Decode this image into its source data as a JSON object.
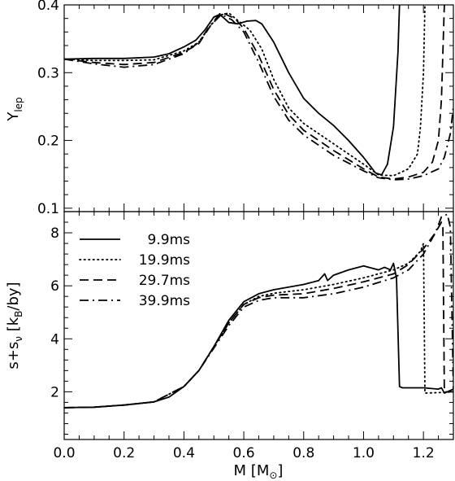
{
  "chart_data": [
    {
      "type": "line",
      "panel": "top",
      "ylabel_main": "Y",
      "ylabel_sub": "lep",
      "xlim": [
        0.0,
        1.3
      ],
      "ylim": [
        0.095,
        0.4
      ],
      "yticks": [
        0.1,
        0.2,
        0.3,
        0.4
      ],
      "ytick_labels": [
        "0.1",
        "0.2",
        "0.3",
        "0.4"
      ],
      "series": [
        {
          "name": "9.9ms",
          "dash": "solid",
          "points": [
            [
              0.0,
              0.32
            ],
            [
              0.1,
              0.321
            ],
            [
              0.2,
              0.321
            ],
            [
              0.3,
              0.323
            ],
            [
              0.35,
              0.328
            ],
            [
              0.4,
              0.338
            ],
            [
              0.44,
              0.348
            ],
            [
              0.47,
              0.363
            ],
            [
              0.5,
              0.382
            ],
            [
              0.52,
              0.386
            ],
            [
              0.55,
              0.374
            ],
            [
              0.58,
              0.372
            ],
            [
              0.61,
              0.376
            ],
            [
              0.64,
              0.377
            ],
            [
              0.66,
              0.372
            ],
            [
              0.7,
              0.345
            ],
            [
              0.75,
              0.3
            ],
            [
              0.8,
              0.262
            ],
            [
              0.85,
              0.24
            ],
            [
              0.9,
              0.222
            ],
            [
              0.95,
              0.2
            ],
            [
              1.0,
              0.175
            ],
            [
              1.04,
              0.152
            ],
            [
              1.06,
              0.149
            ],
            [
              1.08,
              0.165
            ],
            [
              1.1,
              0.22
            ],
            [
              1.115,
              0.33
            ],
            [
              1.12,
              0.4
            ]
          ]
        },
        {
          "name": "19.9ms",
          "dash": "dotted",
          "points": [
            [
              0.0,
              0.32
            ],
            [
              0.1,
              0.318
            ],
            [
              0.2,
              0.318
            ],
            [
              0.3,
              0.319
            ],
            [
              0.4,
              0.332
            ],
            [
              0.45,
              0.345
            ],
            [
              0.49,
              0.37
            ],
            [
              0.52,
              0.385
            ],
            [
              0.55,
              0.388
            ],
            [
              0.58,
              0.377
            ],
            [
              0.62,
              0.363
            ],
            [
              0.66,
              0.335
            ],
            [
              0.7,
              0.29
            ],
            [
              0.75,
              0.248
            ],
            [
              0.8,
              0.225
            ],
            [
              0.9,
              0.195
            ],
            [
              1.0,
              0.165
            ],
            [
              1.05,
              0.149
            ],
            [
              1.1,
              0.148
            ],
            [
              1.15,
              0.158
            ],
            [
              1.18,
              0.18
            ],
            [
              1.19,
              0.22
            ],
            [
              1.2,
              0.3
            ],
            [
              1.205,
              0.4
            ]
          ]
        },
        {
          "name": "29.7ms",
          "dash": "dashed",
          "points": [
            [
              0.0,
              0.32
            ],
            [
              0.1,
              0.315
            ],
            [
              0.2,
              0.312
            ],
            [
              0.3,
              0.315
            ],
            [
              0.4,
              0.33
            ],
            [
              0.45,
              0.343
            ],
            [
              0.49,
              0.37
            ],
            [
              0.53,
              0.388
            ],
            [
              0.57,
              0.38
            ],
            [
              0.6,
              0.365
            ],
            [
              0.65,
              0.325
            ],
            [
              0.7,
              0.275
            ],
            [
              0.75,
              0.238
            ],
            [
              0.8,
              0.215
            ],
            [
              0.9,
              0.185
            ],
            [
              1.0,
              0.158
            ],
            [
              1.05,
              0.146
            ],
            [
              1.1,
              0.143
            ],
            [
              1.15,
              0.146
            ],
            [
              1.2,
              0.153
            ],
            [
              1.23,
              0.168
            ],
            [
              1.25,
              0.2
            ],
            [
              1.26,
              0.26
            ],
            [
              1.27,
              0.4
            ]
          ]
        },
        {
          "name": "39.9ms",
          "dash": "dashdot",
          "points": [
            [
              0.0,
              0.32
            ],
            [
              0.1,
              0.313
            ],
            [
              0.2,
              0.308
            ],
            [
              0.3,
              0.312
            ],
            [
              0.4,
              0.328
            ],
            [
              0.45,
              0.345
            ],
            [
              0.48,
              0.365
            ],
            [
              0.52,
              0.387
            ],
            [
              0.56,
              0.378
            ],
            [
              0.6,
              0.36
            ],
            [
              0.65,
              0.315
            ],
            [
              0.7,
              0.265
            ],
            [
              0.75,
              0.23
            ],
            [
              0.8,
              0.208
            ],
            [
              0.9,
              0.178
            ],
            [
              1.0,
              0.155
            ],
            [
              1.05,
              0.145
            ],
            [
              1.1,
              0.142
            ],
            [
              1.15,
              0.143
            ],
            [
              1.2,
              0.148
            ],
            [
              1.25,
              0.158
            ],
            [
              1.27,
              0.175
            ],
            [
              1.29,
              0.21
            ],
            [
              1.3,
              0.25
            ]
          ]
        }
      ]
    },
    {
      "type": "line",
      "panel": "bottom",
      "xlabel_main": "M  [M",
      "xlabel_sym": "⊙",
      "xlabel_end": "]",
      "ylabel_main": "s+s",
      "ylabel_sub": "ν",
      "ylabel_end": "  [k",
      "ylabel_sub2": "B",
      "ylabel_end2": "/by]",
      "xlim": [
        0.0,
        1.3
      ],
      "ylim": [
        0.2,
        8.8
      ],
      "xticks": [
        0.0,
        0.2,
        0.4,
        0.6,
        0.8,
        1.0,
        1.2
      ],
      "xtick_labels": [
        "0.0",
        "0.2",
        "0.4",
        "0.6",
        "0.8",
        "1.0",
        "1.2"
      ],
      "yticks": [
        2,
        4,
        6,
        8
      ],
      "ytick_labels": [
        "2",
        "4",
        "6",
        "8"
      ],
      "legend": {
        "position": "top-left",
        "entries": [
          "9.9ms",
          "19.9ms",
          "29.7ms",
          "39.9ms"
        ]
      },
      "series": [
        {
          "name": "9.9ms",
          "dash": "solid",
          "points": [
            [
              0.0,
              1.4
            ],
            [
              0.1,
              1.42
            ],
            [
              0.2,
              1.5
            ],
            [
              0.3,
              1.62
            ],
            [
              0.35,
              1.8
            ],
            [
              0.4,
              2.2
            ],
            [
              0.45,
              2.8
            ],
            [
              0.5,
              3.7
            ],
            [
              0.55,
              4.7
            ],
            [
              0.6,
              5.4
            ],
            [
              0.65,
              5.7
            ],
            [
              0.7,
              5.85
            ],
            [
              0.8,
              6.05
            ],
            [
              0.85,
              6.2
            ],
            [
              0.87,
              6.45
            ],
            [
              0.88,
              6.2
            ],
            [
              0.9,
              6.4
            ],
            [
              0.95,
              6.6
            ],
            [
              1.0,
              6.75
            ],
            [
              1.05,
              6.6
            ],
            [
              1.07,
              6.7
            ],
            [
              1.09,
              6.6
            ],
            [
              1.1,
              6.85
            ],
            [
              1.11,
              6.3
            ],
            [
              1.12,
              2.2
            ],
            [
              1.13,
              2.15
            ],
            [
              1.2,
              2.15
            ],
            [
              1.25,
              2.1
            ],
            [
              1.26,
              2.15
            ],
            [
              1.27,
              1.95
            ],
            [
              1.3,
              2.1
            ]
          ]
        },
        {
          "name": "19.9ms",
          "dash": "dotted",
          "points": [
            [
              0.0,
              1.4
            ],
            [
              0.1,
              1.42
            ],
            [
              0.2,
              1.5
            ],
            [
              0.3,
              1.62
            ],
            [
              0.4,
              2.2
            ],
            [
              0.45,
              2.8
            ],
            [
              0.5,
              3.7
            ],
            [
              0.55,
              4.6
            ],
            [
              0.6,
              5.3
            ],
            [
              0.65,
              5.6
            ],
            [
              0.7,
              5.72
            ],
            [
              0.8,
              5.85
            ],
            [
              0.9,
              6.05
            ],
            [
              1.0,
              6.3
            ],
            [
              1.1,
              6.6
            ],
            [
              1.15,
              6.85
            ],
            [
              1.19,
              7.3
            ],
            [
              1.2,
              7.6
            ],
            [
              1.205,
              1.95
            ],
            [
              1.25,
              1.97
            ],
            [
              1.3,
              2.0
            ]
          ]
        },
        {
          "name": "29.7ms",
          "dash": "dashed",
          "points": [
            [
              0.0,
              1.4
            ],
            [
              0.1,
              1.42
            ],
            [
              0.2,
              1.5
            ],
            [
              0.3,
              1.62
            ],
            [
              0.4,
              2.2
            ],
            [
              0.45,
              2.8
            ],
            [
              0.5,
              3.7
            ],
            [
              0.55,
              4.6
            ],
            [
              0.6,
              5.3
            ],
            [
              0.65,
              5.55
            ],
            [
              0.7,
              5.65
            ],
            [
              0.8,
              5.7
            ],
            [
              0.9,
              5.9
            ],
            [
              1.0,
              6.15
            ],
            [
              1.1,
              6.45
            ],
            [
              1.15,
              6.8
            ],
            [
              1.2,
              7.4
            ],
            [
              1.24,
              8.0
            ],
            [
              1.26,
              8.4
            ],
            [
              1.265,
              8.2
            ],
            [
              1.27,
              2.0
            ],
            [
              1.3,
              2.0
            ]
          ]
        },
        {
          "name": "39.9ms",
          "dash": "dashdot",
          "points": [
            [
              0.0,
              1.4
            ],
            [
              0.1,
              1.42
            ],
            [
              0.2,
              1.5
            ],
            [
              0.3,
              1.62
            ],
            [
              0.4,
              2.2
            ],
            [
              0.45,
              2.8
            ],
            [
              0.5,
              3.65
            ],
            [
              0.55,
              4.5
            ],
            [
              0.6,
              5.2
            ],
            [
              0.65,
              5.45
            ],
            [
              0.7,
              5.55
            ],
            [
              0.8,
              5.55
            ],
            [
              0.9,
              5.7
            ],
            [
              1.0,
              5.95
            ],
            [
              1.1,
              6.3
            ],
            [
              1.15,
              6.6
            ],
            [
              1.2,
              7.2
            ],
            [
              1.24,
              8.0
            ],
            [
              1.26,
              8.6
            ],
            [
              1.28,
              8.7
            ],
            [
              1.29,
              8.2
            ],
            [
              1.3,
              2.1
            ]
          ]
        }
      ]
    }
  ]
}
